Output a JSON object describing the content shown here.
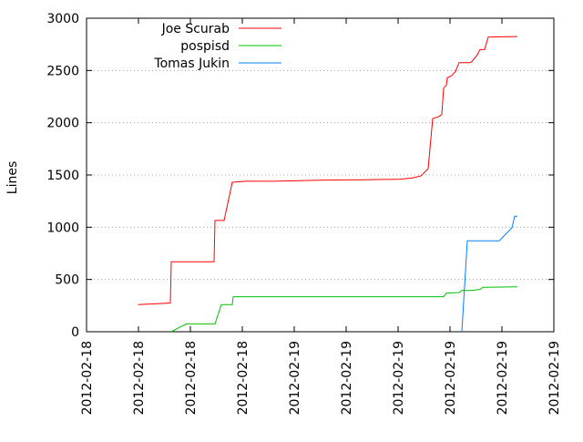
{
  "chart_data": {
    "type": "line",
    "title": "",
    "xlabel": "",
    "ylabel": "Lines",
    "x_ticks": [
      "2012-02-18",
      "2012-02-18",
      "2012-02-18",
      "2012-02-18",
      "2012-02-19",
      "2012-02-19",
      "2012-02-19",
      "2012-02-19",
      "2012-02-19",
      "2012-02-19"
    ],
    "y_ticks": [
      0,
      500,
      1000,
      1500,
      2000,
      2500,
      3000
    ],
    "ylim": [
      0,
      3000
    ],
    "grid": "horizontal dotted",
    "legend_position": "top-left",
    "series": [
      {
        "name": "Joe Scurab",
        "color": "#ff0000",
        "points": [
          [
            151.5,
            260
          ],
          [
            165,
            265
          ],
          [
            187,
            275
          ],
          [
            188,
            670
          ],
          [
            205,
            670
          ],
          [
            235,
            670
          ],
          [
            236,
            1065
          ],
          [
            246,
            1065
          ],
          [
            255,
            1430
          ],
          [
            270,
            1440
          ],
          [
            300,
            1440
          ],
          [
            350,
            1450
          ],
          [
            400,
            1455
          ],
          [
            440,
            1460
          ],
          [
            452,
            1470
          ],
          [
            462,
            1490
          ],
          [
            470,
            1560
          ],
          [
            475,
            2040
          ],
          [
            482,
            2060
          ],
          [
            485,
            2080
          ],
          [
            487,
            2330
          ],
          [
            490,
            2360
          ],
          [
            491,
            2430
          ],
          [
            495,
            2445
          ],
          [
            500,
            2490
          ],
          [
            504,
            2575
          ],
          [
            516,
            2575
          ],
          [
            518,
            2585
          ],
          [
            524,
            2650
          ],
          [
            527,
            2700
          ],
          [
            532,
            2700
          ],
          [
            536,
            2820
          ],
          [
            568,
            2825
          ]
        ]
      },
      {
        "name": "pospisd",
        "color": "#00c000",
        "points": [
          [
            188,
            0
          ],
          [
            200,
            55
          ],
          [
            205,
            75
          ],
          [
            221,
            75
          ],
          [
            236,
            75
          ],
          [
            243,
            260
          ],
          [
            255,
            260
          ],
          [
            256,
            335
          ],
          [
            300,
            335
          ],
          [
            400,
            335
          ],
          [
            487,
            335
          ],
          [
            490,
            370
          ],
          [
            504,
            375
          ],
          [
            507,
            395
          ],
          [
            516,
            395
          ],
          [
            527,
            405
          ],
          [
            530,
            425
          ],
          [
            568,
            430
          ]
        ]
      },
      {
        "name": "Tomas Jukin",
        "color": "#0080ff",
        "points": [
          [
            507,
            0
          ],
          [
            513,
            870
          ],
          [
            548,
            870
          ],
          [
            553,
            915
          ],
          [
            562,
            995
          ],
          [
            565,
            1105
          ],
          [
            568,
            1105
          ]
        ]
      }
    ]
  }
}
